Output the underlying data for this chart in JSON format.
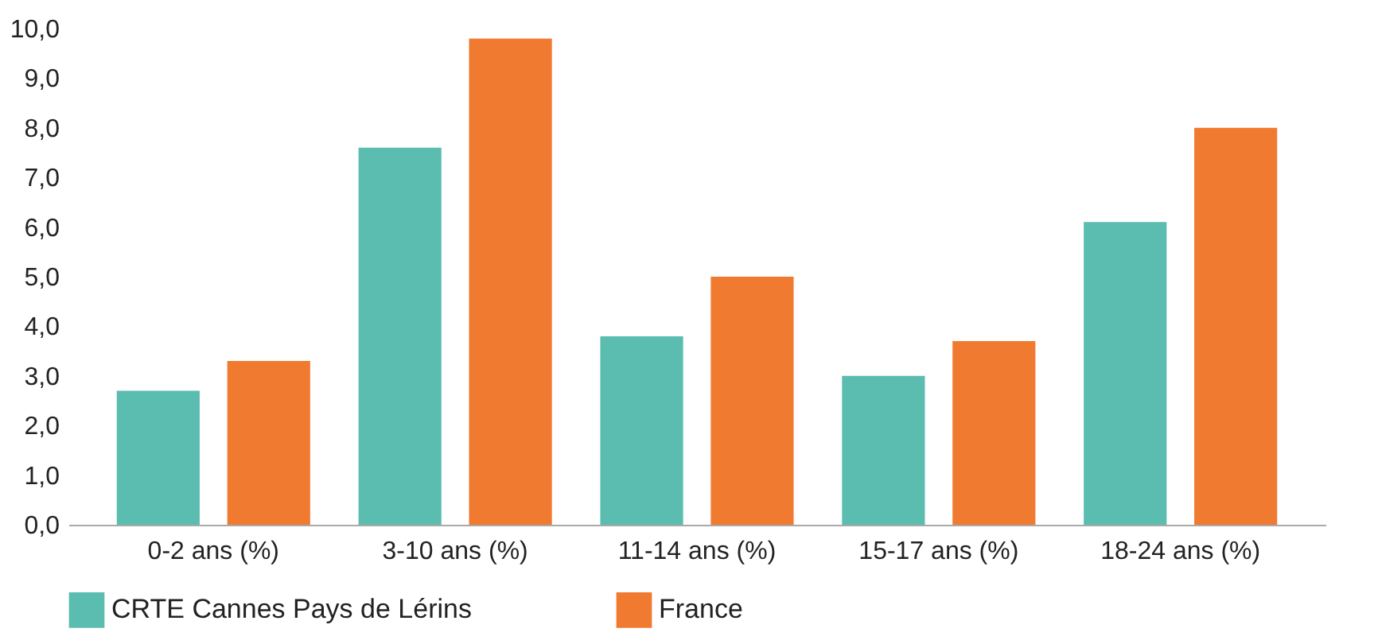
{
  "chart_data": {
    "type": "bar",
    "categories": [
      "0-2 ans (%)",
      "3-10 ans (%)",
      "11-14 ans (%)",
      "15-17 ans (%)",
      "18-24 ans (%)"
    ],
    "series": [
      {
        "name": "CRTE Cannes Pays de Lérins",
        "color": "#5bbcb0",
        "values": [
          2.7,
          7.6,
          3.8,
          3.0,
          6.1
        ]
      },
      {
        "name": "France",
        "color": "#f07a30",
        "values": [
          3.3,
          9.8,
          5.0,
          3.7,
          8.0
        ]
      }
    ],
    "ylim": [
      0,
      10
    ],
    "yticks": [
      {
        "value": 0,
        "label": "0,0"
      },
      {
        "value": 1,
        "label": "1,0"
      },
      {
        "value": 2,
        "label": "2,0"
      },
      {
        "value": 3,
        "label": "3,0"
      },
      {
        "value": 4,
        "label": "4,0"
      },
      {
        "value": 5,
        "label": "5,0"
      },
      {
        "value": 6,
        "label": "6,0"
      },
      {
        "value": 7,
        "label": "7,0"
      },
      {
        "value": 8,
        "label": "8,0"
      },
      {
        "value": 9,
        "label": "9,0"
      },
      {
        "value": 10,
        "label": "10,0"
      }
    ],
    "grid": false,
    "legend": "bottom"
  }
}
